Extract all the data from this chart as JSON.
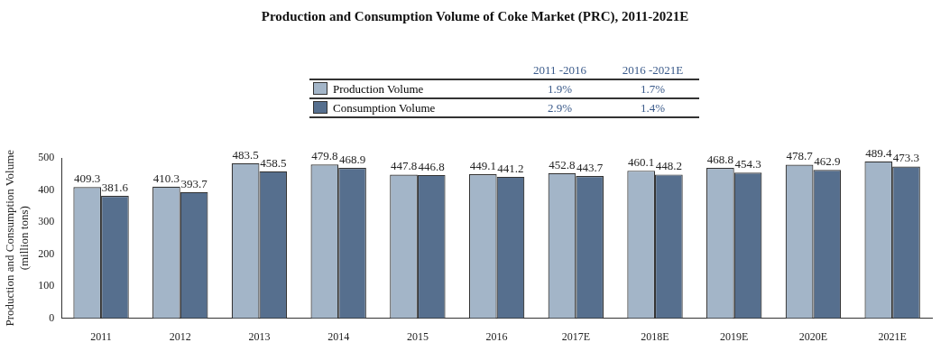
{
  "chart_data": {
    "type": "bar",
    "title": "Production and Consumption Volume of Coke Market (PRC), 2011-2021E",
    "ylabel": "Production and Consumption Volume\n(million tons)",
    "categories": [
      "2011",
      "2012",
      "2013",
      "2014",
      "2015",
      "2016",
      "2017E",
      "2018E",
      "2019E",
      "2020E",
      "2021E"
    ],
    "series": [
      {
        "name": "Production Volume",
        "color": "#a3b5c8",
        "values": [
          409.3,
          410.3,
          483.5,
          479.8,
          447.8,
          449.1,
          452.8,
          460.1,
          468.8,
          478.7,
          489.4
        ]
      },
      {
        "name": "Consumption Volume",
        "color": "#566f8e",
        "values": [
          381.6,
          393.7,
          458.5,
          468.9,
          446.8,
          441.2,
          443.7,
          448.2,
          454.3,
          462.9,
          473.3
        ]
      }
    ],
    "annotations": [
      "2011 -2016",
      "2016 -2021E",
      "1.9%",
      "1.7%",
      "2.9%",
      "1.4%"
    ],
    "ylim": [
      0,
      500
    ],
    "yticks": [
      0,
      100,
      200,
      300,
      400,
      500
    ],
    "grid": false,
    "legend": "top",
    "data_labels": true
  }
}
